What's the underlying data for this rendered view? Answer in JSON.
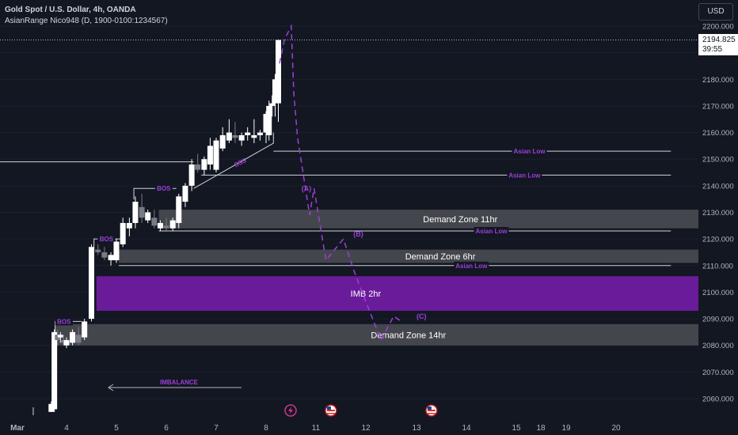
{
  "header": {
    "title": "Gold Spot / U.S. Dollar, 4h, OANDA",
    "indicator": "AsianRange Nico948 (D, 1900-0100:1234567)"
  },
  "currency_button": "USD",
  "last_price": {
    "value": "2194.825",
    "countdown": "39:55"
  },
  "colors": {
    "background": "#131722",
    "bull": "#ffffff",
    "bear": "#787b86",
    "purple": "#9c3fd9",
    "imbalance": "#6a1b9a"
  },
  "chart_data": {
    "type": "candlestick",
    "symbol": "Gold Spot / U.S. Dollar",
    "interval": "4h",
    "y_ticks": [
      2060,
      2070,
      2080,
      2090,
      2100,
      2110,
      2120,
      2130,
      2140,
      2150,
      2160,
      2170,
      2180,
      2190,
      2200
    ],
    "ylim": [
      2056,
      2205
    ],
    "x_ticks": [
      {
        "label": "Mar",
        "day": 0
      },
      {
        "label": "4",
        "day": 4
      },
      {
        "label": "5",
        "day": 5
      },
      {
        "label": "6",
        "day": 6
      },
      {
        "label": "7",
        "day": 7
      },
      {
        "label": "8",
        "day": 8
      },
      {
        "label": "11",
        "day": 11
      },
      {
        "label": "12",
        "day": 12
      },
      {
        "label": "13",
        "day": 13
      },
      {
        "label": "14",
        "day": 14
      },
      {
        "label": "15",
        "day": 15
      },
      {
        "label": "18",
        "day": 18
      },
      {
        "label": "19",
        "day": 19
      },
      {
        "label": "20",
        "day": 20
      }
    ],
    "candles": [
      {
        "x": 3.4,
        "o": 2055,
        "h": 2059,
        "l": 2055,
        "c": 2058
      },
      {
        "x": 3.52,
        "o": 2056,
        "h": 2086,
        "l": 2055,
        "c": 2085
      },
      {
        "x": 3.65,
        "o": 2084,
        "h": 2086,
        "l": 2080,
        "c": 2082
      },
      {
        "x": 3.76,
        "o": 2083,
        "h": 2085,
        "l": 2081,
        "c": 2084
      },
      {
        "x": 3.88,
        "o": 2082,
        "h": 2084,
        "l": 2080,
        "c": 2081
      },
      {
        "x": 4.0,
        "o": 2080,
        "h": 2083,
        "l": 2079,
        "c": 2082
      },
      {
        "x": 4.12,
        "o": 2081,
        "h": 2086,
        "l": 2080,
        "c": 2085
      },
      {
        "x": 4.24,
        "o": 2084,
        "h": 2087,
        "l": 2080,
        "c": 2081
      },
      {
        "x": 4.36,
        "o": 2083,
        "h": 2090,
        "l": 2082,
        "c": 2089
      },
      {
        "x": 4.5,
        "o": 2090,
        "h": 2118,
        "l": 2089,
        "c": 2117
      },
      {
        "x": 4.63,
        "o": 2116,
        "h": 2118,
        "l": 2114,
        "c": 2115
      },
      {
        "x": 4.76,
        "o": 2115,
        "h": 2117,
        "l": 2112,
        "c": 2113
      },
      {
        "x": 4.89,
        "o": 2112,
        "h": 2115,
        "l": 2110,
        "c": 2114
      },
      {
        "x": 5.0,
        "o": 2112,
        "h": 2120,
        "l": 2111,
        "c": 2119
      },
      {
        "x": 5.13,
        "o": 2118,
        "h": 2128,
        "l": 2117,
        "c": 2126
      },
      {
        "x": 5.26,
        "o": 2124,
        "h": 2128,
        "l": 2121,
        "c": 2126
      },
      {
        "x": 5.38,
        "o": 2126,
        "h": 2136,
        "l": 2124,
        "c": 2134
      },
      {
        "x": 5.51,
        "o": 2132,
        "h": 2137,
        "l": 2126,
        "c": 2128
      },
      {
        "x": 5.63,
        "o": 2127,
        "h": 2131,
        "l": 2126,
        "c": 2130
      },
      {
        "x": 5.76,
        "o": 2128,
        "h": 2131,
        "l": 2124,
        "c": 2125
      },
      {
        "x": 5.88,
        "o": 2124,
        "h": 2127,
        "l": 2123,
        "c": 2126
      },
      {
        "x": 6.0,
        "o": 2125,
        "h": 2128,
        "l": 2123,
        "c": 2124
      },
      {
        "x": 6.13,
        "o": 2124,
        "h": 2128,
        "l": 2123,
        "c": 2127
      },
      {
        "x": 6.25,
        "o": 2126,
        "h": 2137,
        "l": 2124,
        "c": 2136
      },
      {
        "x": 6.38,
        "o": 2134,
        "h": 2141,
        "l": 2132,
        "c": 2140
      },
      {
        "x": 6.51,
        "o": 2140,
        "h": 2150,
        "l": 2138,
        "c": 2148
      },
      {
        "x": 6.63,
        "o": 2148,
        "h": 2152,
        "l": 2145,
        "c": 2146
      },
      {
        "x": 6.76,
        "o": 2146,
        "h": 2151,
        "l": 2144,
        "c": 2150
      },
      {
        "x": 6.88,
        "o": 2148,
        "h": 2158,
        "l": 2146,
        "c": 2155
      },
      {
        "x": 7.0,
        "o": 2146,
        "h": 2158,
        "l": 2145,
        "c": 2157
      },
      {
        "x": 7.13,
        "o": 2154,
        "h": 2162,
        "l": 2153,
        "c": 2159
      },
      {
        "x": 7.26,
        "o": 2157,
        "h": 2165,
        "l": 2156,
        "c": 2160
      },
      {
        "x": 7.38,
        "o": 2159,
        "h": 2164,
        "l": 2156,
        "c": 2158
      },
      {
        "x": 7.51,
        "o": 2157,
        "h": 2160,
        "l": 2155,
        "c": 2159
      },
      {
        "x": 7.63,
        "o": 2159,
        "h": 2162,
        "l": 2157,
        "c": 2160
      },
      {
        "x": 7.76,
        "o": 2158,
        "h": 2165,
        "l": 2156,
        "c": 2159
      },
      {
        "x": 7.88,
        "o": 2159,
        "h": 2161,
        "l": 2157,
        "c": 2160
      },
      {
        "x": 8.0,
        "o": 2160,
        "h": 2168,
        "l": 2156,
        "c": 2167
      },
      {
        "x": 8.12,
        "o": 2159,
        "h": 2172,
        "l": 2157,
        "c": 2170
      },
      {
        "x": 8.25,
        "o": 2170,
        "h": 2174,
        "l": 2166,
        "c": 2171
      },
      {
        "x": 8.37,
        "o": 2171,
        "h": 2182,
        "l": 2166,
        "c": 2180
      },
      {
        "x": 8.5,
        "o": 2171,
        "h": 2195,
        "l": 2164,
        "c": 2194.8
      }
    ],
    "zones": [
      {
        "label": "Demand Zone 11hr",
        "from": 2124,
        "to": 2131,
        "x_start": 5.85,
        "kind": "demand"
      },
      {
        "label": "Demand Zone 6hr",
        "from": 2111,
        "to": 2116,
        "x_start": 5.05,
        "kind": "demand"
      },
      {
        "label": "IMB 2hr",
        "from": 2093,
        "to": 2106,
        "x_start": 4.6,
        "kind": "imbalance"
      },
      {
        "label": "Demand Zone 14hr",
        "from": 2080,
        "to": 2088,
        "x_start": 3.55,
        "kind": "demand"
      }
    ],
    "levels": [
      {
        "label": "Asian Low",
        "price": 2153,
        "x_start": 8.3,
        "x_end": 21.1,
        "label_x": 16.6
      },
      {
        "label": "Asian Low",
        "price": 2144,
        "x_start": 6.7,
        "x_end": 21.1,
        "label_x": 16.0
      },
      {
        "label": "Asian Low",
        "price": 2123,
        "x_start": 5.85,
        "x_end": 21.1,
        "label_x": 14.5
      },
      {
        "label": "Asian Low",
        "price": 2110,
        "x_start": 5.05,
        "x_end": 21.1,
        "label_x": 14.1
      }
    ],
    "structure": [
      {
        "label": "BOS",
        "price": 2139,
        "x_start": 5.35,
        "x_end": 6.2,
        "label_x": 5.95
      },
      {
        "label": "BOS",
        "price": 2120,
        "x_start": 4.55,
        "x_end": 5.1,
        "label_x": 4.8
      },
      {
        "label": "BOS",
        "price": 2089,
        "x_start": 3.55,
        "x_end": 4.3,
        "label_x": 3.9
      }
    ],
    "sss_label": "SSS",
    "horizontal_line": {
      "price": 2149,
      "x_end": 6.55
    },
    "imbalance_label": "IMBALANCE",
    "projection_path": [
      {
        "x": 8.55,
        "y": 2186
      },
      {
        "x": 8.75,
        "y": 2195
      },
      {
        "x": 9.05,
        "y": 2200
      },
      {
        "x": 9.25,
        "y": 2175
      },
      {
        "x": 9.55,
        "y": 2158
      },
      {
        "x": 10.5,
        "y": 2129
      },
      {
        "x": 10.85,
        "y": 2139
      },
      {
        "x": 11.2,
        "y": 2112
      },
      {
        "x": 11.55,
        "y": 2120
      },
      {
        "x": 11.8,
        "y": 2106
      },
      {
        "x": 12.3,
        "y": 2082
      },
      {
        "x": 12.55,
        "y": 2091
      },
      {
        "x": 12.7,
        "y": 2089
      }
    ],
    "wave_labels": [
      {
        "label": "(A)",
        "x": 10.25,
        "y": 2138
      },
      {
        "label": "(B)",
        "x": 11.85,
        "y": 2121
      },
      {
        "label": "(C)",
        "x": 13.1,
        "y": 2090
      }
    ],
    "event_markers": [
      {
        "name": "lightning-event",
        "x": 9.0
      },
      {
        "name": "us-flag-event",
        "x": 11.3
      },
      {
        "name": "us-flag-event",
        "x": 13.3
      }
    ]
  }
}
